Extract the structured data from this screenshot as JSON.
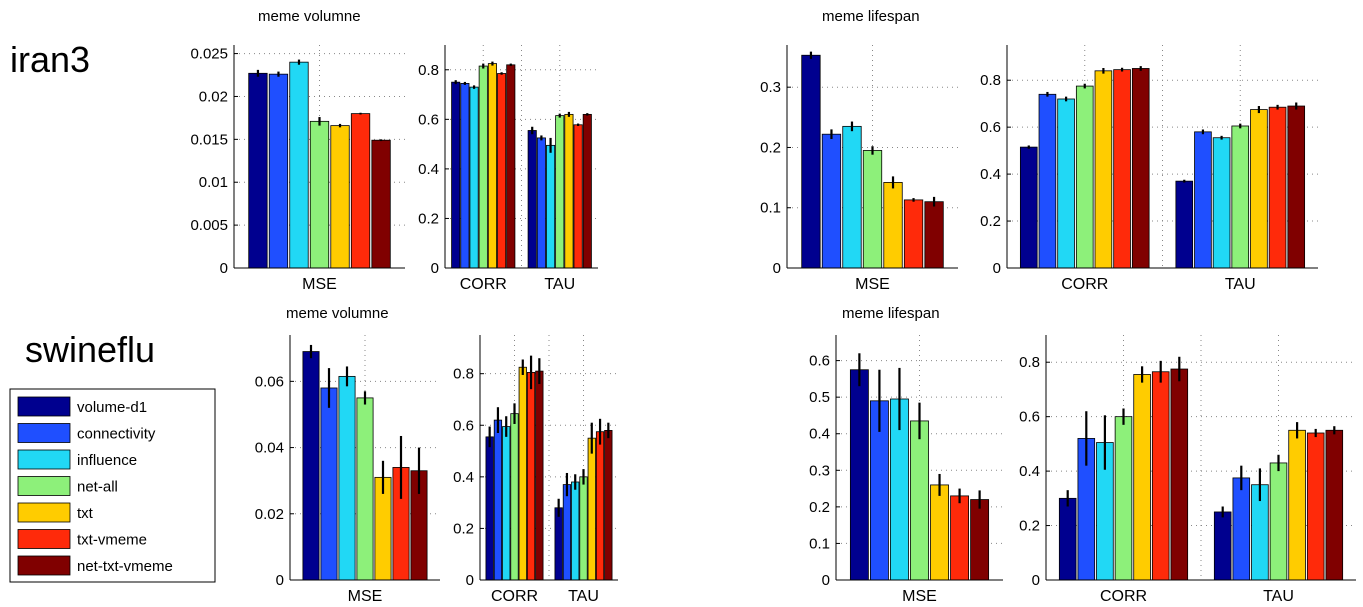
{
  "row_labels": [
    "iran3",
    "swineflu"
  ],
  "titles": {
    "iran3_volume": "meme volumne",
    "iran3_lifespan": "meme lifespan",
    "swineflu_volume": "meme volumne",
    "swineflu_lifespan": "meme lifespan"
  },
  "legend": {
    "placement": "left",
    "entries": [
      {
        "name": "volume-d1",
        "color": "#00008f"
      },
      {
        "name": "connectivity",
        "color": "#1f4fff"
      },
      {
        "name": "influence",
        "color": "#21d8f5"
      },
      {
        "name": "net-all",
        "color": "#8df07a"
      },
      {
        "name": "txt",
        "color": "#ffcc00"
      },
      {
        "name": "txt-vmeme",
        "color": "#ff2a0a"
      },
      {
        "name": "net-txt-vmeme",
        "color": "#800000"
      }
    ]
  },
  "chart_data": [
    {
      "type": "bar",
      "row": "iran3",
      "panel": "volume-mse",
      "categories": [
        "MSE"
      ],
      "ylim": [
        0,
        0.026
      ],
      "yticks": [
        "0",
        "0.005",
        "0.01",
        "0.015",
        "0.02",
        "0.025"
      ],
      "grid": true,
      "series": [
        {
          "name": "volume-d1",
          "values": [
            0.0227
          ],
          "err": [
            0.0004
          ]
        },
        {
          "name": "connectivity",
          "values": [
            0.0226
          ],
          "err": [
            0.0003
          ]
        },
        {
          "name": "influence",
          "values": [
            0.024
          ],
          "err": [
            0.0003
          ]
        },
        {
          "name": "net-all",
          "values": [
            0.0171
          ],
          "err": [
            0.0005
          ]
        },
        {
          "name": "txt",
          "values": [
            0.0166
          ],
          "err": [
            0.0002
          ]
        },
        {
          "name": "txt-vmeme",
          "values": [
            0.018
          ],
          "err": [
            0.0001
          ]
        },
        {
          "name": "net-txt-vmeme",
          "values": [
            0.0149
          ],
          "err": [
            0.0001
          ]
        }
      ]
    },
    {
      "type": "bar",
      "row": "iran3",
      "panel": "volume-corr-tau",
      "categories": [
        "CORR",
        "TAU"
      ],
      "ylim": [
        0,
        0.9
      ],
      "yticks": [
        "0",
        "0.2",
        "0.4",
        "0.6",
        "0.8"
      ],
      "grid": true,
      "series": [
        {
          "name": "volume-d1",
          "values": [
            0.75,
            0.555
          ],
          "err": [
            0.008,
            0.015
          ]
        },
        {
          "name": "connectivity",
          "values": [
            0.745,
            0.525
          ],
          "err": [
            0.006,
            0.01
          ]
        },
        {
          "name": "influence",
          "values": [
            0.73,
            0.495
          ],
          "err": [
            0.007,
            0.03
          ]
        },
        {
          "name": "net-all",
          "values": [
            0.815,
            0.615
          ],
          "err": [
            0.01,
            0.008
          ]
        },
        {
          "name": "txt",
          "values": [
            0.825,
            0.62
          ],
          "err": [
            0.008,
            0.01
          ]
        },
        {
          "name": "txt-vmeme",
          "values": [
            0.785,
            0.578
          ],
          "err": [
            0.005,
            0.005
          ]
        },
        {
          "name": "net-txt-vmeme",
          "values": [
            0.82,
            0.62
          ],
          "err": [
            0.005,
            0.005
          ]
        }
      ]
    },
    {
      "type": "bar",
      "row": "iran3",
      "panel": "lifespan-mse",
      "categories": [
        "MSE"
      ],
      "ylim": [
        0,
        0.37
      ],
      "yticks": [
        "0",
        "0.1",
        "0.2",
        "0.3"
      ],
      "grid": true,
      "series": [
        {
          "name": "volume-d1",
          "values": [
            0.353
          ],
          "err": [
            0.006
          ]
        },
        {
          "name": "connectivity",
          "values": [
            0.222
          ],
          "err": [
            0.008
          ]
        },
        {
          "name": "influence",
          "values": [
            0.235
          ],
          "err": [
            0.008
          ]
        },
        {
          "name": "net-all",
          "values": [
            0.195
          ],
          "err": [
            0.007
          ]
        },
        {
          "name": "txt",
          "values": [
            0.142
          ],
          "err": [
            0.01
          ]
        },
        {
          "name": "txt-vmeme",
          "values": [
            0.113
          ],
          "err": [
            0.003
          ]
        },
        {
          "name": "net-txt-vmeme",
          "values": [
            0.11
          ],
          "err": [
            0.008
          ]
        }
      ]
    },
    {
      "type": "bar",
      "row": "iran3",
      "panel": "lifespan-corr-tau",
      "categories": [
        "CORR",
        "TAU"
      ],
      "ylim": [
        0,
        0.95
      ],
      "yticks": [
        "0",
        "0.2",
        "0.4",
        "0.6",
        "0.8"
      ],
      "grid": true,
      "series": [
        {
          "name": "volume-d1",
          "values": [
            0.515,
            0.37
          ],
          "err": [
            0.007,
            0.006
          ]
        },
        {
          "name": "connectivity",
          "values": [
            0.74,
            0.58
          ],
          "err": [
            0.01,
            0.01
          ]
        },
        {
          "name": "influence",
          "values": [
            0.72,
            0.555
          ],
          "err": [
            0.01,
            0.008
          ]
        },
        {
          "name": "net-all",
          "values": [
            0.775,
            0.605
          ],
          "err": [
            0.01,
            0.01
          ]
        },
        {
          "name": "txt",
          "values": [
            0.84,
            0.675
          ],
          "err": [
            0.012,
            0.015
          ]
        },
        {
          "name": "txt-vmeme",
          "values": [
            0.845,
            0.685
          ],
          "err": [
            0.008,
            0.01
          ]
        },
        {
          "name": "net-txt-vmeme",
          "values": [
            0.85,
            0.69
          ],
          "err": [
            0.01,
            0.015
          ]
        }
      ]
    },
    {
      "type": "bar",
      "row": "swineflu",
      "panel": "volume-mse",
      "categories": [
        "MSE"
      ],
      "ylim": [
        0,
        0.074
      ],
      "yticks": [
        "0",
        "0.02",
        "0.04",
        "0.06"
      ],
      "grid": true,
      "series": [
        {
          "name": "volume-d1",
          "values": [
            0.069
          ],
          "err": [
            0.002
          ]
        },
        {
          "name": "connectivity",
          "values": [
            0.058
          ],
          "err": [
            0.006
          ]
        },
        {
          "name": "influence",
          "values": [
            0.0615
          ],
          "err": [
            0.003
          ]
        },
        {
          "name": "net-all",
          "values": [
            0.055
          ],
          "err": [
            0.002
          ]
        },
        {
          "name": "txt",
          "values": [
            0.031
          ],
          "err": [
            0.005
          ]
        },
        {
          "name": "txt-vmeme",
          "values": [
            0.034
          ],
          "err": [
            0.0095
          ]
        },
        {
          "name": "net-txt-vmeme",
          "values": [
            0.033
          ],
          "err": [
            0.007
          ]
        }
      ]
    },
    {
      "type": "bar",
      "row": "swineflu",
      "panel": "volume-corr-tau",
      "categories": [
        "CORR",
        "TAU"
      ],
      "ylim": [
        0,
        0.95
      ],
      "yticks": [
        "0",
        "0.2",
        "0.4",
        "0.6",
        "0.8"
      ],
      "grid": true,
      "series": [
        {
          "name": "volume-d1",
          "values": [
            0.555,
            0.28
          ],
          "err": [
            0.04,
            0.035
          ]
        },
        {
          "name": "connectivity",
          "values": [
            0.62,
            0.37
          ],
          "err": [
            0.05,
            0.045
          ]
        },
        {
          "name": "influence",
          "values": [
            0.595,
            0.38
          ],
          "err": [
            0.04,
            0.03
          ]
        },
        {
          "name": "net-all",
          "values": [
            0.645,
            0.4
          ],
          "err": [
            0.04,
            0.03
          ]
        },
        {
          "name": "txt",
          "values": [
            0.825,
            0.55
          ],
          "err": [
            0.03,
            0.06
          ]
        },
        {
          "name": "txt-vmeme",
          "values": [
            0.805,
            0.575
          ],
          "err": [
            0.065,
            0.05
          ]
        },
        {
          "name": "net-txt-vmeme",
          "values": [
            0.81,
            0.58
          ],
          "err": [
            0.05,
            0.03
          ]
        }
      ]
    },
    {
      "type": "bar",
      "row": "swineflu",
      "panel": "lifespan-mse",
      "categories": [
        "MSE"
      ],
      "ylim": [
        0,
        0.67
      ],
      "yticks": [
        "0",
        "0.1",
        "0.2",
        "0.3",
        "0.4",
        "0.5",
        "0.6"
      ],
      "grid": true,
      "series": [
        {
          "name": "volume-d1",
          "values": [
            0.575
          ],
          "err": [
            0.045
          ]
        },
        {
          "name": "connectivity",
          "values": [
            0.49
          ],
          "err": [
            0.085
          ]
        },
        {
          "name": "influence",
          "values": [
            0.495
          ],
          "err": [
            0.085
          ]
        },
        {
          "name": "net-all",
          "values": [
            0.435
          ],
          "err": [
            0.05
          ]
        },
        {
          "name": "txt",
          "values": [
            0.26
          ],
          "err": [
            0.03
          ]
        },
        {
          "name": "txt-vmeme",
          "values": [
            0.23
          ],
          "err": [
            0.02
          ]
        },
        {
          "name": "net-txt-vmeme",
          "values": [
            0.22
          ],
          "err": [
            0.025
          ]
        }
      ]
    },
    {
      "type": "bar",
      "row": "swineflu",
      "panel": "lifespan-corr-tau",
      "categories": [
        "CORR",
        "TAU"
      ],
      "ylim": [
        0,
        0.9
      ],
      "yticks": [
        "0",
        "0.2",
        "0.4",
        "0.6",
        "0.8"
      ],
      "grid": true,
      "series": [
        {
          "name": "volume-d1",
          "values": [
            0.3,
            0.25
          ],
          "err": [
            0.03,
            0.02
          ]
        },
        {
          "name": "connectivity",
          "values": [
            0.52,
            0.375
          ],
          "err": [
            0.1,
            0.045
          ]
        },
        {
          "name": "influence",
          "values": [
            0.505,
            0.35
          ],
          "err": [
            0.1,
            0.06
          ]
        },
        {
          "name": "net-all",
          "values": [
            0.6,
            0.43
          ],
          "err": [
            0.03,
            0.03
          ]
        },
        {
          "name": "txt",
          "values": [
            0.755,
            0.55
          ],
          "err": [
            0.03,
            0.03
          ]
        },
        {
          "name": "txt-vmeme",
          "values": [
            0.765,
            0.54
          ],
          "err": [
            0.04,
            0.015
          ]
        },
        {
          "name": "net-txt-vmeme",
          "values": [
            0.775,
            0.55
          ],
          "err": [
            0.045,
            0.015
          ]
        }
      ]
    }
  ]
}
